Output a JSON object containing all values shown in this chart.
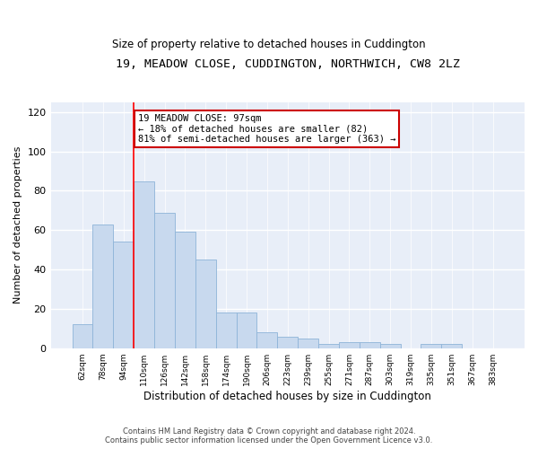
{
  "title": "19, MEADOW CLOSE, CUDDINGTON, NORTHWICH, CW8 2LZ",
  "subtitle": "Size of property relative to detached houses in Cuddington",
  "xlabel": "Distribution of detached houses by size in Cuddington",
  "ylabel": "Number of detached properties",
  "bar_values": [
    12,
    63,
    54,
    85,
    69,
    59,
    45,
    18,
    18,
    8,
    6,
    5,
    2,
    3,
    3,
    2,
    0,
    2,
    2,
    0,
    0
  ],
  "bin_labels": [
    "62sqm",
    "78sqm",
    "94sqm",
    "110sqm",
    "126sqm",
    "142sqm",
    "158sqm",
    "174sqm",
    "190sqm",
    "206sqm",
    "223sqm",
    "239sqm",
    "255sqm",
    "271sqm",
    "287sqm",
    "303sqm",
    "319sqm",
    "335sqm",
    "351sqm",
    "367sqm",
    "383sqm"
  ],
  "bar_color": "#c8d9ee",
  "bar_edge_color": "#8eb4d8",
  "background_color": "#e8eef8",
  "red_line_x": 2.5,
  "annotation_text": "19 MEADOW CLOSE: 97sqm\n← 18% of detached houses are smaller (82)\n81% of semi-detached houses are larger (363) →",
  "annotation_box_color": "white",
  "annotation_box_edge_color": "#cc0000",
  "ylim": [
    0,
    125
  ],
  "yticks": [
    0,
    20,
    40,
    60,
    80,
    100,
    120
  ],
  "footer_line1": "Contains HM Land Registry data © Crown copyright and database right 2024.",
  "footer_line2": "Contains public sector information licensed under the Open Government Licence v3.0."
}
